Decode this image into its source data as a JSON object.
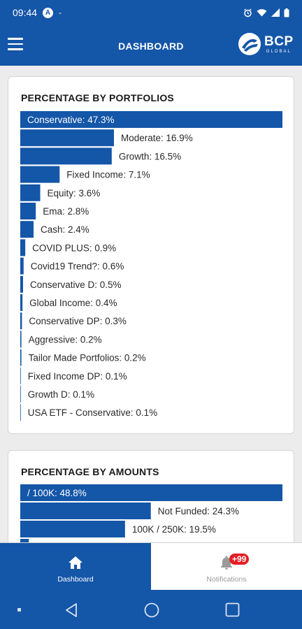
{
  "status_bar": {
    "time": "09:44",
    "a_badge": "A",
    "dash": "-"
  },
  "app_bar": {
    "title": "DASHBOARD",
    "logo_text": "BCP",
    "logo_sub": "GLOBAL"
  },
  "portfolios": {
    "title": "PERCENTAGE BY PORTFOLIOS",
    "bar_color": "#1456a8",
    "chart_data": {
      "type": "bar",
      "orientation": "horizontal",
      "title": "PERCENTAGE BY PORTFOLIOS",
      "categories": [
        "Conservative",
        "Moderate",
        "Growth",
        "Fixed Income",
        "Equity",
        "Ema",
        "Cash",
        "COVID PLUS",
        "Covid19 Trend?",
        "Conservative D",
        "Global Income",
        "Conservative DP",
        "Aggressive",
        "Tailor Made Portfolios",
        "Fixed Income DP",
        "Growth D",
        "USA ETF - Conservative"
      ],
      "labels": [
        "Conservative: 47.3%",
        "Moderate: 16.9%",
        "Growth: 16.5%",
        "Fixed Income: 7.1%",
        "Equity: 3.6%",
        "Ema: 2.8%",
        "Cash: 2.4%",
        "COVID PLUS: 0.9%",
        "Covid19 Trend?: 0.6%",
        "Conservative D: 0.5%",
        "Global Income: 0.4%",
        "Conservative DP: 0.3%",
        "Aggressive: 0.2%",
        "Tailor Made Portfolios: 0.2%",
        "Fixed Income DP: 0.1%",
        "Growth D: 0.1%",
        "USA ETF - Conservative: 0.1%"
      ],
      "values": [
        47.3,
        16.9,
        16.5,
        7.1,
        3.6,
        2.8,
        2.4,
        0.9,
        0.6,
        0.5,
        0.4,
        0.3,
        0.2,
        0.2,
        0.1,
        0.1,
        0.1
      ]
    }
  },
  "amounts": {
    "title": "PERCENTAGE BY AMOUNTS",
    "bar_color": "#1456a8",
    "chart_data": {
      "type": "bar",
      "orientation": "horizontal",
      "title": "PERCENTAGE BY AMOUNTS",
      "categories": [
        "/ 100K",
        "Not Funded",
        "100K / 250K",
        ""
      ],
      "labels": [
        "/ 100K: 48.8%",
        "Not Funded: 24.3%",
        "100K / 250K: 19.5%",
        ""
      ],
      "values": [
        48.8,
        24.3,
        19.5,
        1.6
      ]
    }
  },
  "bottom_nav": {
    "dashboard_label": "Dashboard",
    "notifications_label": "Notifications",
    "notifications_badge": "+99"
  }
}
